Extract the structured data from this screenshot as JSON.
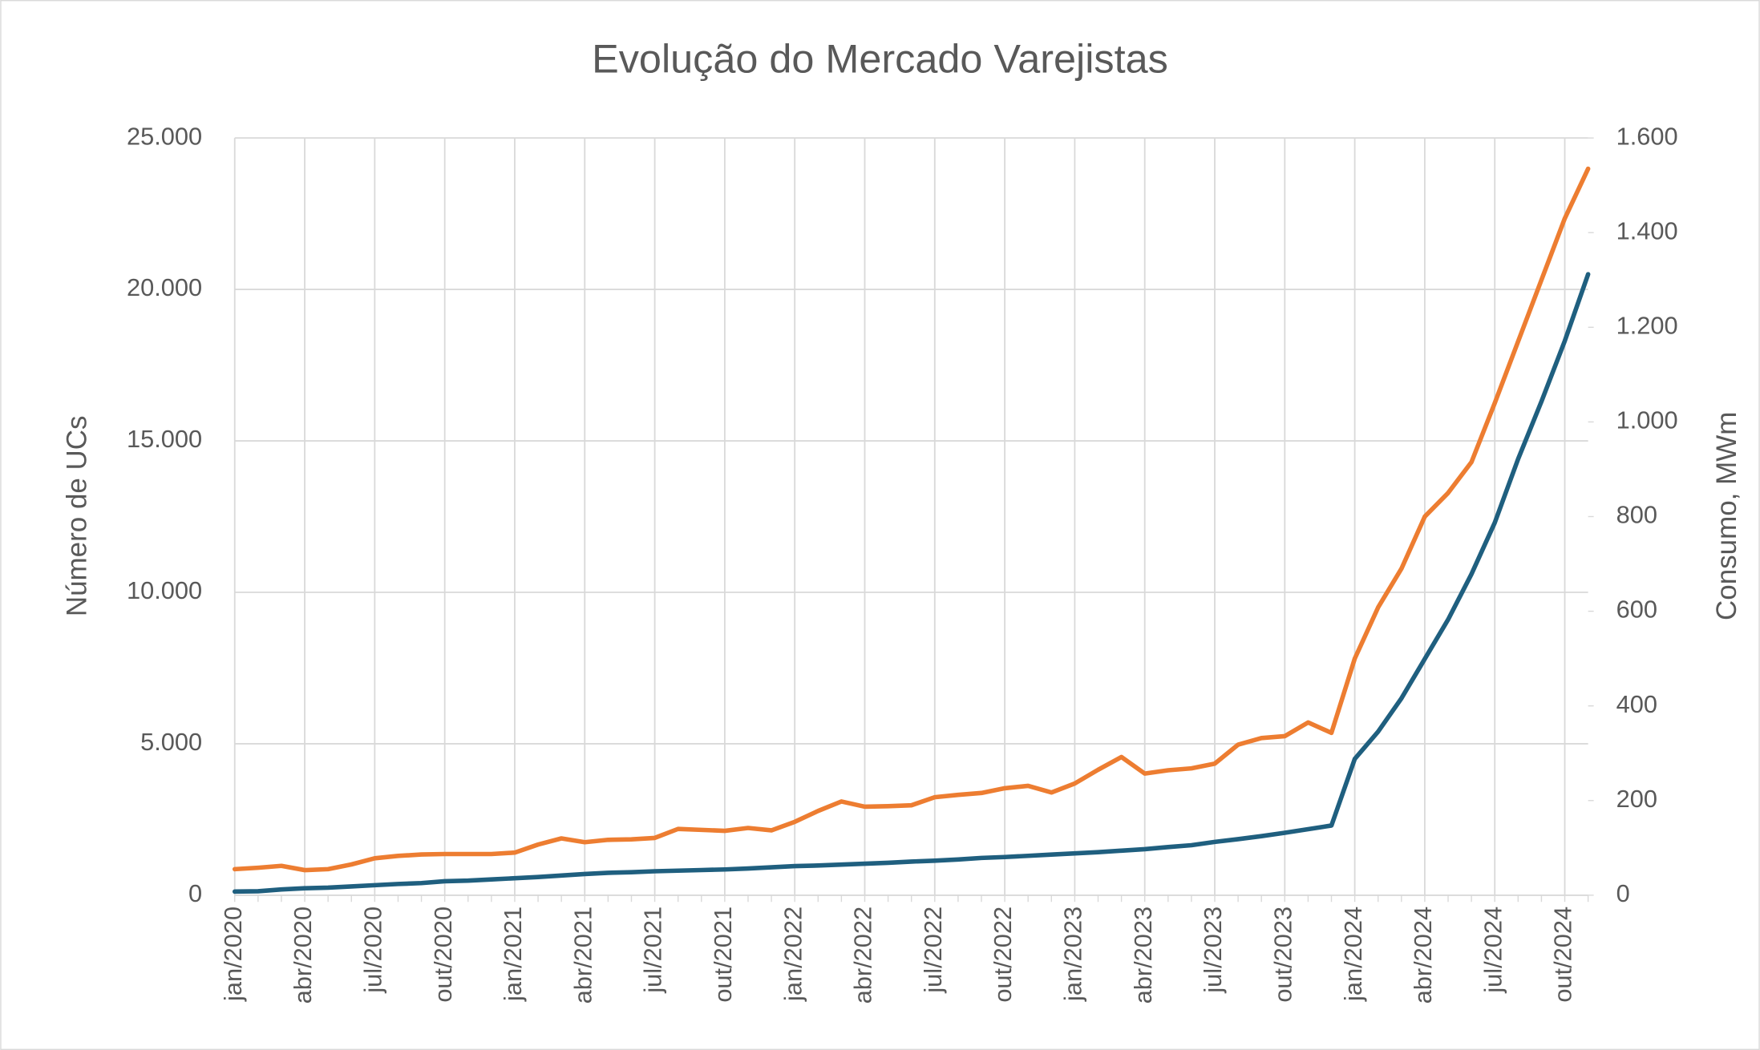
{
  "chart_data": {
    "type": "line",
    "title": "Evolução do Mercado Varejistas",
    "ylabel": "Número de UCs",
    "y2label": "Consumo, MWm",
    "categories": [
      "jan/2020",
      null,
      null,
      "abr/2020",
      null,
      null,
      "jul/2020",
      null,
      null,
      "out/2020",
      null,
      null,
      "jan/2021",
      null,
      null,
      "abr/2021",
      null,
      null,
      "jul/2021",
      null,
      null,
      "out/2021",
      null,
      null,
      "jan/2022",
      null,
      null,
      "abr/2022",
      null,
      null,
      "jul/2022",
      null,
      null,
      "out/2022",
      null,
      null,
      "jan/2023",
      null,
      null,
      "abr/2023",
      null,
      null,
      "jul/2023",
      null,
      null,
      "out/2023",
      null,
      null,
      "jan/2024",
      null,
      null,
      "abr/2024",
      null,
      null,
      "jul/2024",
      null,
      null,
      "out/2024",
      null
    ],
    "series": [
      {
        "color": "#1f5f7f",
        "axis": "y",
        "values": [
          120,
          130,
          190,
          230,
          250,
          290,
          330,
          370,
          400,
          460,
          480,
          520,
          560,
          600,
          650,
          700,
          740,
          760,
          790,
          810,
          830,
          850,
          880,
          920,
          960,
          980,
          1010,
          1040,
          1070,
          1110,
          1140,
          1180,
          1230,
          1260,
          1300,
          1340,
          1380,
          1420,
          1470,
          1520,
          1590,
          1650,
          1760,
          1850,
          1950,
          2060,
          2180,
          2300,
          4500,
          5400,
          6500,
          7800,
          9100,
          10600,
          12300,
          14400,
          16300,
          18300,
          20500
        ]
      },
      {
        "color": "#ed7d31",
        "axis": "y2",
        "values": [
          55,
          58,
          62,
          53,
          55,
          65,
          78,
          83,
          86,
          87,
          87,
          87,
          90,
          107,
          120,
          112,
          117,
          118,
          121,
          140,
          138,
          136,
          142,
          137,
          155,
          178,
          198,
          187,
          188,
          190,
          207,
          212,
          216,
          226,
          231,
          217,
          236,
          265,
          292,
          257,
          264,
          268,
          278,
          318,
          332,
          336,
          365,
          343,
          500,
          608,
          690,
          800,
          850,
          915,
          1040,
          1170,
          1300,
          1430,
          1535
        ]
      }
    ],
    "ylim": [
      0,
      25000
    ],
    "yticks": [
      0,
      {
        "value": 5000,
        "label": "5.000"
      },
      {
        "value": 10000,
        "label": "10.000"
      },
      {
        "value": 15000,
        "label": "15.000"
      },
      {
        "value": 20000,
        "label": "20.000"
      },
      {
        "value": 25000,
        "label": "25.000"
      }
    ],
    "y2lim": [
      0,
      1600
    ],
    "y2ticks": [
      0,
      200,
      400,
      600,
      800,
      {
        "value": 1000,
        "label": "1.000"
      },
      {
        "value": 1200,
        "label": "1.200"
      },
      {
        "value": 1400,
        "label": "1.400"
      },
      {
        "value": 1600,
        "label": "1.600"
      }
    ],
    "grid": true
  }
}
